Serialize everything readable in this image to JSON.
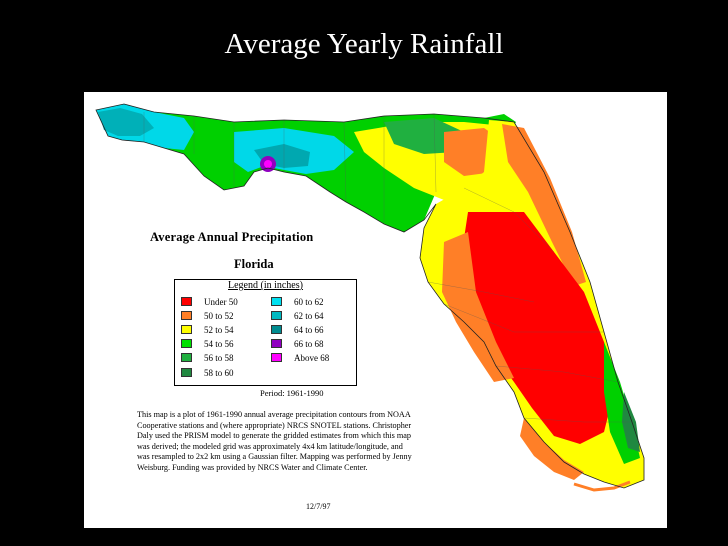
{
  "slide": {
    "title": "Average Yearly Rainfall"
  },
  "map": {
    "title": "Average Annual Precipitation",
    "subtitle": "Florida",
    "legend": {
      "title": "Legend (in inches)",
      "items": [
        {
          "label": "Under 50",
          "color": "#ff0000"
        },
        {
          "label": "50 to 52",
          "color": "#ff7f27"
        },
        {
          "label": "52 to 54",
          "color": "#ffff00"
        },
        {
          "label": "54 to 56",
          "color": "#00e000"
        },
        {
          "label": "56 to 58",
          "color": "#20b040"
        },
        {
          "label": "58 to 60",
          "color": "#208840"
        },
        {
          "label": "60 to 62",
          "color": "#00e0f0"
        },
        {
          "label": "62 to 64",
          "color": "#00b8c0"
        },
        {
          "label": "64 to 66",
          "color": "#008c90"
        },
        {
          "label": "66 to 68",
          "color": "#9000c0"
        },
        {
          "label": "Above 68",
          "color": "#ff00ff"
        }
      ]
    },
    "period": "Period: 1961-1990",
    "description": "This map is a plot of 1961-1990 annual average precipitation contours from NOAA Cooperative stations and (where appropriate) NRCS SNOTEL stations. Christopher Daly used the PRISM model to generate the gridded estimates from which this map was derived; the modeled grid was approximately 4x4 km latitude/longitude, and was resampled to 2x2 km using a Gaussian filter. Mapping was performed by Jenny Weisburg. Funding was provided by NRCS Water and Climate Center.",
    "date": "12/7/97"
  }
}
